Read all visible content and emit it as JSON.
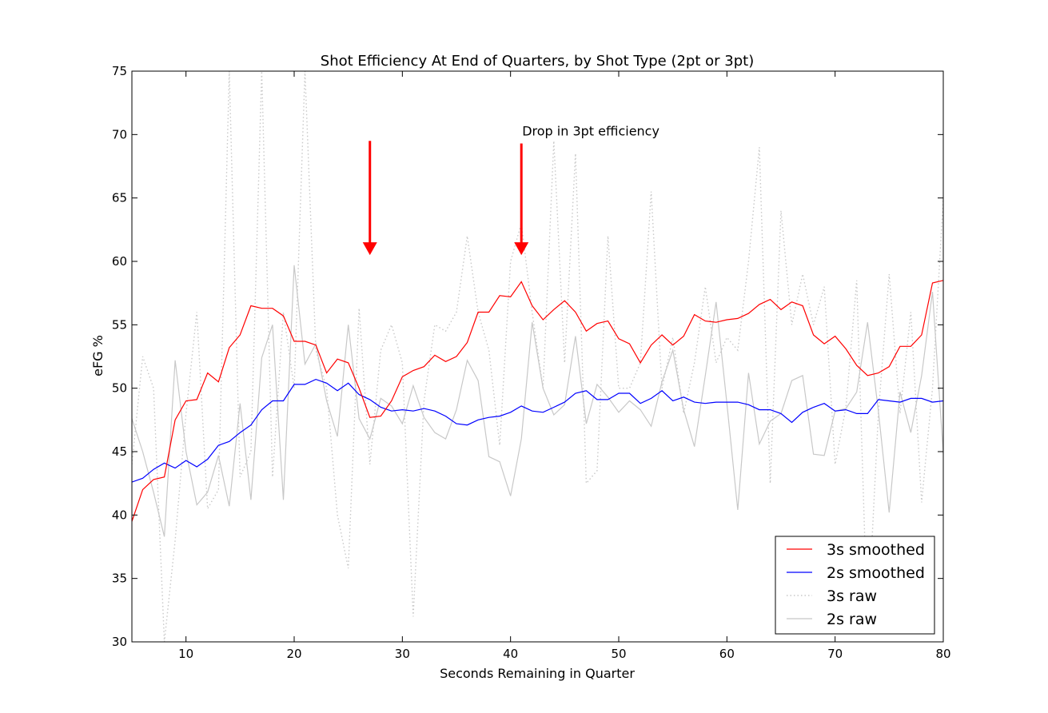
{
  "chart_data": {
    "type": "line",
    "title": "Shot Efficiency At End of Quarters, by Shot Type (2pt or 3pt)",
    "xlabel": "Seconds Remaining in Quarter",
    "ylabel": "eFG %",
    "xlim": [
      5,
      80
    ],
    "ylim": [
      30,
      75
    ],
    "xticks": [
      "10",
      "20",
      "30",
      "40",
      "50",
      "60",
      "70",
      "80"
    ],
    "yticks": [
      "30",
      "35",
      "40",
      "45",
      "50",
      "55",
      "60",
      "65",
      "70",
      "75"
    ],
    "grid": false,
    "legend_position": "lower-right",
    "x": [
      5,
      6,
      7,
      8,
      9,
      10,
      11,
      12,
      13,
      14,
      15,
      16,
      17,
      18,
      19,
      20,
      21,
      22,
      23,
      24,
      25,
      26,
      27,
      28,
      29,
      30,
      31,
      32,
      33,
      34,
      35,
      36,
      37,
      38,
      39,
      40,
      41,
      42,
      43,
      44,
      45,
      46,
      47,
      48,
      49,
      50,
      51,
      52,
      53,
      54,
      55,
      56,
      57,
      58,
      59,
      60,
      61,
      62,
      63,
      64,
      65,
      66,
      67,
      68,
      69,
      70,
      71,
      72,
      73,
      74,
      75,
      76,
      77,
      78,
      79,
      80
    ],
    "series": [
      {
        "name": "3s smoothed",
        "color": "#ff0000",
        "style": "solid",
        "values": [
          39.5,
          42.0,
          42.8,
          43.0,
          47.5,
          49.0,
          49.1,
          51.2,
          50.5,
          53.2,
          54.2,
          56.5,
          56.3,
          56.3,
          55.7,
          53.7,
          53.7,
          53.4,
          51.2,
          52.3,
          52.0,
          50.0,
          47.7,
          47.8,
          49.0,
          50.9,
          51.4,
          51.7,
          52.6,
          52.1,
          52.5,
          53.6,
          56.0,
          56.0,
          57.3,
          57.2,
          58.4,
          56.5,
          55.4,
          56.2,
          56.9,
          56.0,
          54.5,
          55.1,
          55.3,
          53.9,
          53.5,
          52.0,
          53.4,
          54.2,
          53.4,
          54.1,
          55.8,
          55.3,
          55.2,
          55.4,
          55.5,
          55.9,
          56.6,
          57.0,
          56.2,
          56.8,
          56.5,
          54.2,
          53.5,
          54.1,
          53.1,
          51.8,
          51.0,
          51.2,
          51.7,
          53.3,
          53.3,
          54.2,
          58.3,
          58.5
        ]
      },
      {
        "name": "2s smoothed",
        "color": "#0000ff",
        "style": "solid",
        "values": [
          42.6,
          42.9,
          43.6,
          44.1,
          43.7,
          44.3,
          43.8,
          44.4,
          45.5,
          45.8,
          46.5,
          47.1,
          48.3,
          49.0,
          49.0,
          50.3,
          50.3,
          50.7,
          50.4,
          49.8,
          50.4,
          49.5,
          49.1,
          48.5,
          48.2,
          48.3,
          48.2,
          48.4,
          48.2,
          47.8,
          47.2,
          47.1,
          47.5,
          47.7,
          47.8,
          48.1,
          48.6,
          48.2,
          48.1,
          48.5,
          48.9,
          49.6,
          49.8,
          49.1,
          49.1,
          49.6,
          49.6,
          48.8,
          49.2,
          49.8,
          49.0,
          49.3,
          48.9,
          48.8,
          48.9,
          48.9,
          48.9,
          48.7,
          48.3,
          48.3,
          48.0,
          47.3,
          48.1,
          48.5,
          48.8,
          48.2,
          48.3,
          48.0,
          48.0,
          49.1,
          49.0,
          48.9,
          49.2,
          49.2,
          48.9,
          49.0
        ]
      },
      {
        "name": "3s raw",
        "color": "#c8c8c8",
        "style": "dotted",
        "values": [
          44.0,
          52.5,
          50.0,
          30.0,
          38.0,
          48.0,
          56.0,
          40.5,
          42.0,
          75.0,
          43.0,
          45.0,
          75.0,
          43.0,
          56.0,
          50.0,
          75.0,
          53.0,
          50.0,
          40.0,
          35.8,
          56.3,
          44.0,
          53.0,
          55.0,
          52.0,
          32.0,
          49.0,
          55.0,
          54.5,
          56.0,
          62.0,
          56.0,
          53.0,
          45.5,
          60.0,
          63.0,
          56.0,
          50.0,
          69.5,
          52.0,
          68.5,
          42.5,
          43.5,
          62.0,
          50.0,
          50.0,
          52.0,
          65.5,
          50.0,
          54.0,
          48.0,
          52.0,
          58.0,
          52.0,
          54.0,
          53.0,
          60.0,
          69.0,
          42.5,
          64.0,
          55.0,
          59.0,
          55.0,
          58.0,
          44.0,
          48.5,
          58.5,
          31.0,
          48.0,
          59.0,
          48.0,
          56.0,
          41.0,
          50.0,
          65.0
        ]
      },
      {
        "name": "2s raw",
        "color": "#c8c8c8",
        "style": "solid",
        "values": [
          47.6,
          45.0,
          41.8,
          38.3,
          52.2,
          45.0,
          40.8,
          41.8,
          44.7,
          40.7,
          48.8,
          41.2,
          52.4,
          55.0,
          41.2,
          59.7,
          51.9,
          53.5,
          49.0,
          46.2,
          55.0,
          47.6,
          46.0,
          49.2,
          48.6,
          47.2,
          50.2,
          47.7,
          46.5,
          46.0,
          48.3,
          52.2,
          50.6,
          44.6,
          44.2,
          41.5,
          46.0,
          55.2,
          50.0,
          47.9,
          48.7,
          54.1,
          47.2,
          50.3,
          49.3,
          48.1,
          49.0,
          48.3,
          47.0,
          50.5,
          53.0,
          48.3,
          45.4,
          51.0,
          56.8,
          48.8,
          40.4,
          51.2,
          45.6,
          47.4,
          48.0,
          50.6,
          51.0,
          44.8,
          44.7,
          48.2,
          48.4,
          49.7,
          55.2,
          48.2,
          40.2,
          49.7,
          46.5,
          51.0,
          57.6,
          44.8
        ]
      }
    ],
    "annotations": [
      {
        "text": "",
        "x": 27,
        "y_from": 69.5,
        "y_to": 60.5,
        "color": "#ff0000"
      },
      {
        "text": "Drop in 3pt efficiency",
        "x": 41,
        "y_from": 69.3,
        "y_to": 60.5,
        "color": "#ff0000"
      }
    ]
  }
}
